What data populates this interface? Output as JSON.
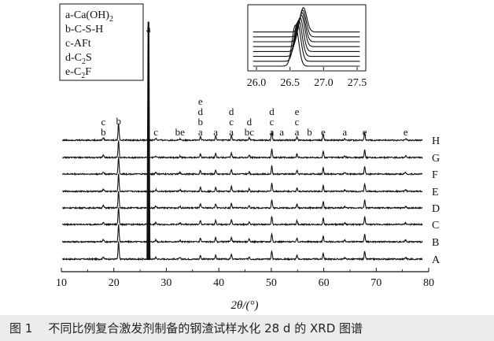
{
  "caption": {
    "figure_number": "图 1",
    "text": "不同比例复合激发剂制备的钢渣试样水化 28 d 的 XRD 图谱"
  },
  "legend": [
    {
      "letter": "a",
      "name": "Ca(OH)",
      "sub": "2",
      "rest": ""
    },
    {
      "letter": "b",
      "name": "C-S-H",
      "sub": "",
      "rest": ""
    },
    {
      "letter": "c",
      "name": "AFt",
      "sub": "",
      "rest": ""
    },
    {
      "letter": "d",
      "name": "C",
      "sub": "2",
      "rest": "S"
    },
    {
      "letter": "e",
      "name": "C",
      "sub": "2",
      "rest": "F"
    }
  ],
  "chart_data": {
    "type": "line",
    "title": "",
    "xlabel": "2θ/(°)",
    "ylabel": "",
    "xlim": [
      10,
      80
    ],
    "xticks": [
      10,
      20,
      30,
      40,
      50,
      60,
      70,
      80
    ],
    "grid": false,
    "series": [
      {
        "name": "A"
      },
      {
        "name": "B"
      },
      {
        "name": "C"
      },
      {
        "name": "D"
      },
      {
        "name": "E"
      },
      {
        "name": "F"
      },
      {
        "name": "G"
      },
      {
        "name": "H"
      }
    ],
    "peaks": [
      {
        "x": 18.0,
        "height": 0.13,
        "minor": true
      },
      {
        "x": 20.9,
        "height": 1.0
      },
      {
        "x": 26.6,
        "height": 0.0,
        "main": true
      },
      {
        "x": 28.0,
        "height": 0.1,
        "minor": true
      },
      {
        "x": 32.6,
        "height": 0.08,
        "minor": true
      },
      {
        "x": 36.5,
        "height": 0.22
      },
      {
        "x": 39.4,
        "height": 0.25
      },
      {
        "x": 42.4,
        "height": 0.28
      },
      {
        "x": 45.8,
        "height": 0.15
      },
      {
        "x": 50.1,
        "height": 0.48
      },
      {
        "x": 54.9,
        "height": 0.22
      },
      {
        "x": 59.9,
        "height": 0.36
      },
      {
        "x": 64.0,
        "height": 0.08,
        "minor": true
      },
      {
        "x": 67.8,
        "height": 0.45
      },
      {
        "x": 75.6,
        "height": 0.09,
        "minor": true
      }
    ],
    "peak_labels": [
      {
        "x": 18.0,
        "letters": [
          "c",
          "b"
        ]
      },
      {
        "x": 20.9,
        "letters": [
          "b"
        ]
      },
      {
        "x": 26.6,
        "letters": [
          "a"
        ]
      },
      {
        "x": 28.0,
        "letters": [
          "c"
        ]
      },
      {
        "x": 32.6,
        "letters": [
          "be"
        ]
      },
      {
        "x": 36.5,
        "letters": [
          "e",
          "d",
          "b",
          "a"
        ]
      },
      {
        "x": 39.4,
        "letters": [
          "a"
        ]
      },
      {
        "x": 42.4,
        "letters": [
          "d",
          "c",
          "a"
        ]
      },
      {
        "x": 45.8,
        "letters": [
          "d",
          "bc"
        ]
      },
      {
        "x": 50.1,
        "letters": [
          "d",
          "c",
          "a"
        ]
      },
      {
        "x": 52.0,
        "letters": [
          "a"
        ]
      },
      {
        "x": 54.9,
        "letters": [
          "e",
          "c",
          "a"
        ]
      },
      {
        "x": 57.3,
        "letters": [
          "b"
        ]
      },
      {
        "x": 59.9,
        "letters": [
          "e"
        ]
      },
      {
        "x": 64.0,
        "letters": [
          "a"
        ]
      },
      {
        "x": 67.8,
        "letters": [
          "e"
        ]
      },
      {
        "x": 75.6,
        "letters": [
          "e"
        ]
      }
    ],
    "inset": {
      "xlim": [
        26.0,
        27.5
      ],
      "xticks": [
        "26.0",
        "26.5",
        "27.0",
        "27.5"
      ],
      "peak_centers": [
        26.58,
        26.61,
        26.63,
        26.65,
        26.67,
        26.68,
        26.69,
        26.7
      ]
    }
  }
}
